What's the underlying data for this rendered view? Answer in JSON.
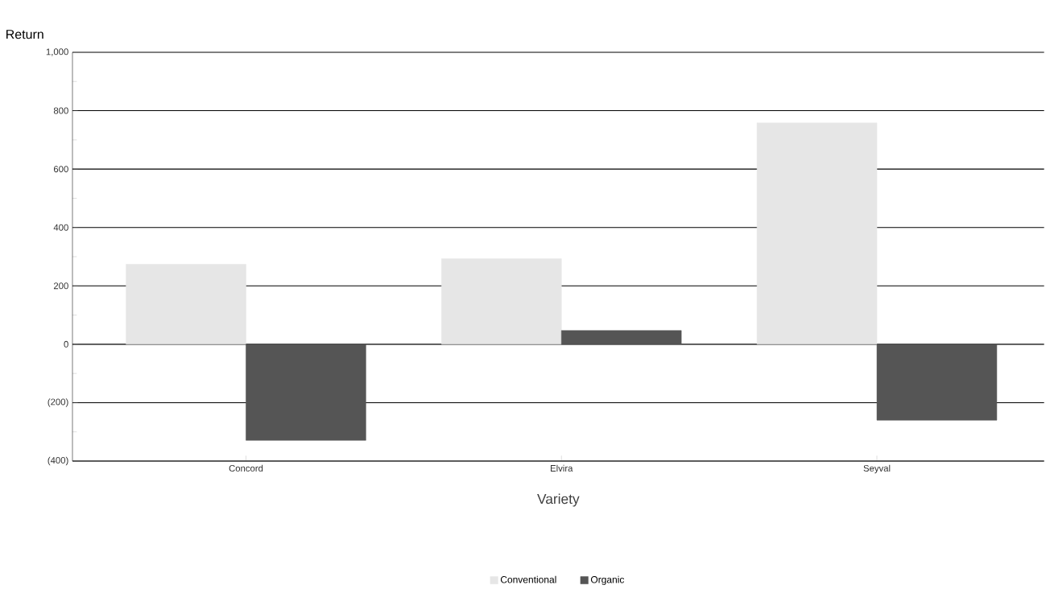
{
  "chart_data": {
    "type": "bar",
    "xlabel": "Variety",
    "ylabel": "Return",
    "categories": [
      "Concord",
      "Elvira",
      "Seyval"
    ],
    "series": [
      {
        "name": "Conventional",
        "color": "#e6e6e6",
        "values": [
          274,
          293,
          758
        ]
      },
      {
        "name": "Organic",
        "color": "#555555",
        "values": [
          -329,
          47,
          -260
        ]
      }
    ],
    "ylim": [
      -400,
      1000
    ],
    "yticks": [
      {
        "value": -400,
        "label": "(400)"
      },
      {
        "value": -200,
        "label": "(200)"
      },
      0,
      200,
      400,
      600,
      800,
      {
        "value": 1000,
        "label": "1,000"
      }
    ],
    "grid": "y",
    "legend": "bottom"
  }
}
